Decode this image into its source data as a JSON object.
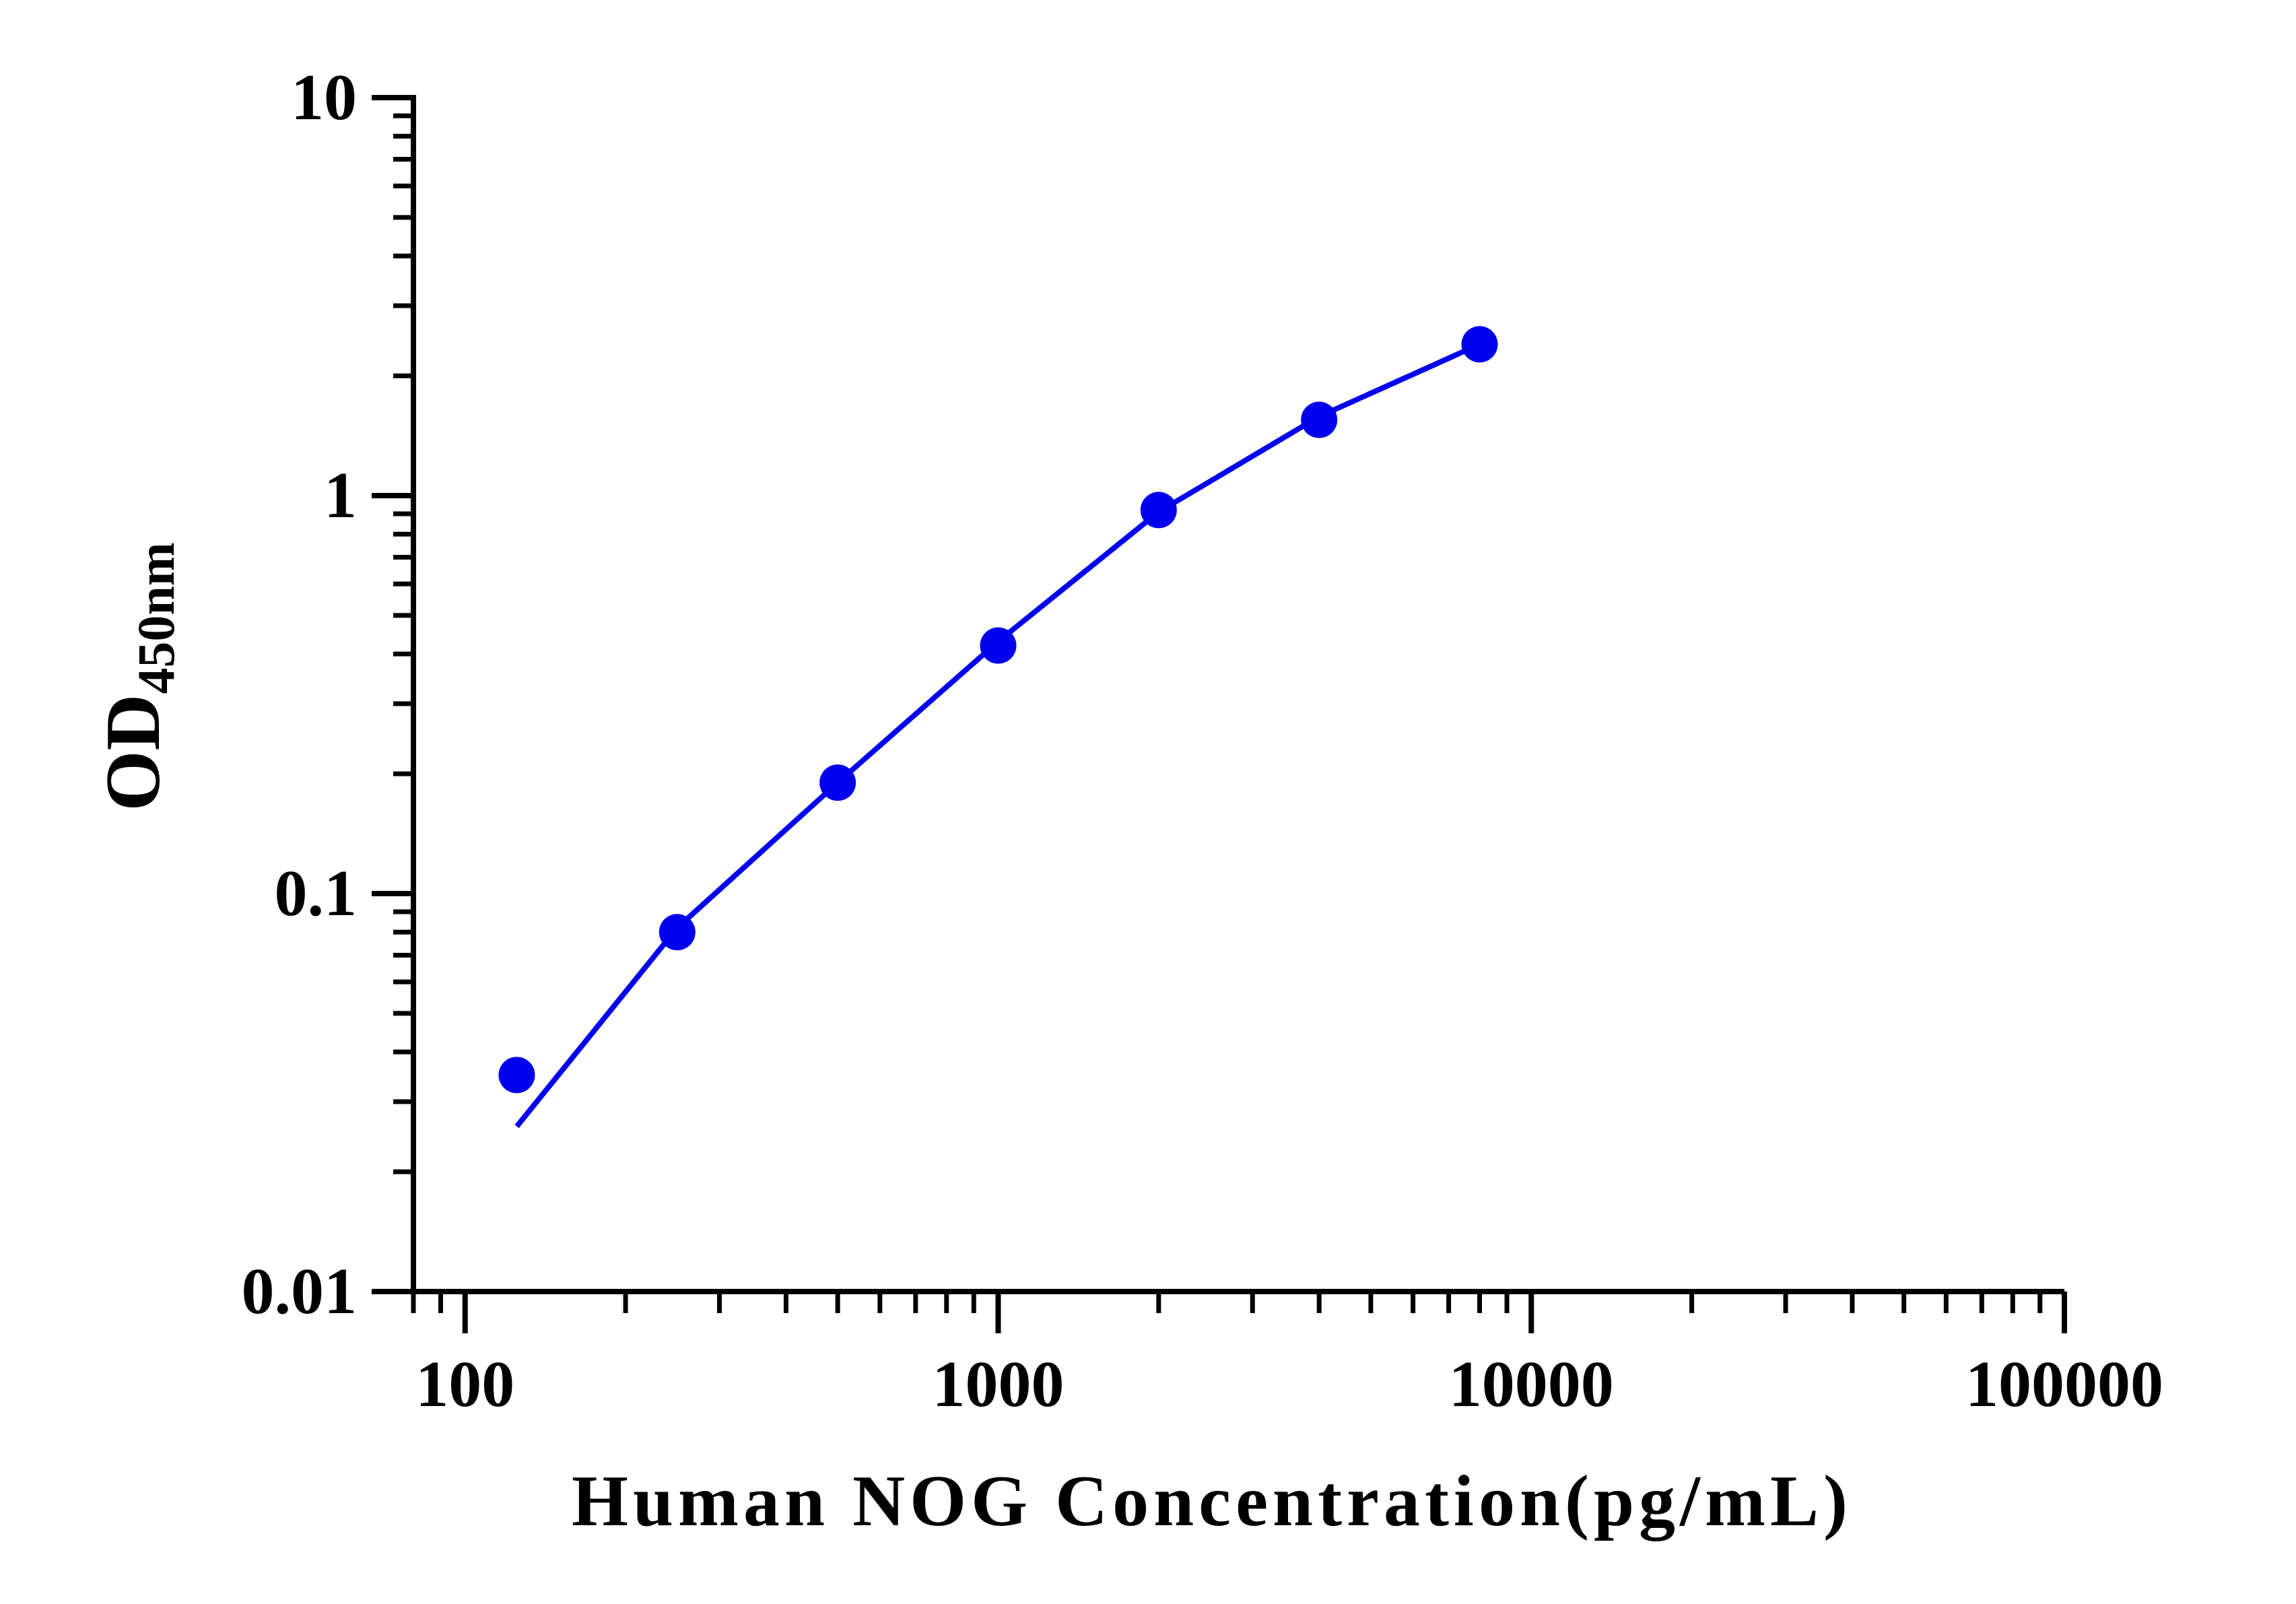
{
  "chart_data": {
    "type": "line",
    "title": "",
    "xlabel": "Human NOG Concentration(pg/mL)",
    "ylabel_main": "OD",
    "ylabel_sub": "450nm",
    "x_scale": "log",
    "y_scale": "log",
    "xlim": [
      80,
      100000
    ],
    "ylim": [
      0.01,
      10
    ],
    "x_tick_labels": [
      "100",
      "1000",
      "10000",
      "100000"
    ],
    "y_tick_labels": [
      "0.01",
      "0.1",
      "1",
      "10"
    ],
    "grid": false,
    "legend": "none",
    "series": [
      {
        "color": "#0000ee",
        "points": [
          {
            "x": 125,
            "y": 0.035
          },
          {
            "x": 250,
            "y": 0.08
          },
          {
            "x": 500,
            "y": 0.19
          },
          {
            "x": 1000,
            "y": 0.42
          },
          {
            "x": 2000,
            "y": 0.92
          },
          {
            "x": 4000,
            "y": 1.55
          },
          {
            "x": 8000,
            "y": 2.4
          }
        ],
        "fit_curve": [
          {
            "x": 125,
            "y": 0.026
          },
          {
            "x": 250,
            "y": 0.082
          },
          {
            "x": 500,
            "y": 0.19
          },
          {
            "x": 1000,
            "y": 0.43
          },
          {
            "x": 2000,
            "y": 0.91
          },
          {
            "x": 4000,
            "y": 1.58
          },
          {
            "x": 8000,
            "y": 2.4
          }
        ]
      }
    ]
  }
}
